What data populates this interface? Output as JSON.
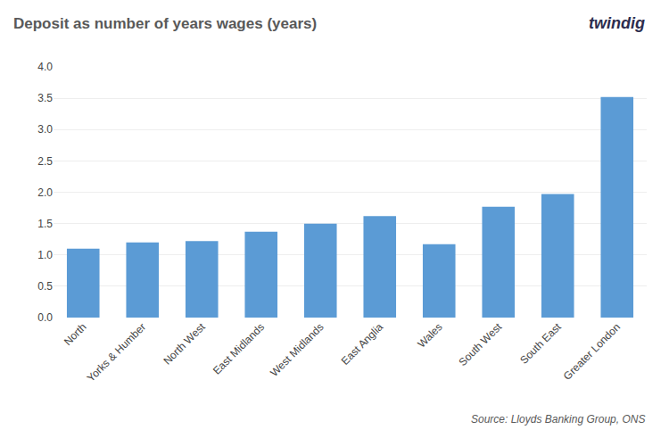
{
  "chart_data": {
    "type": "bar",
    "title": "Deposit as number of years wages (years)",
    "categories": [
      "North",
      "Yorks & Humber",
      "North West",
      "East Midlands",
      "West Midlands",
      "East Anglia",
      "Wales",
      "South West",
      "South East",
      "Greater London"
    ],
    "values": [
      1.1,
      1.2,
      1.22,
      1.37,
      1.5,
      1.62,
      1.17,
      1.77,
      1.97,
      3.52
    ],
    "color": "#5B9BD5",
    "ylim": [
      0,
      4.0
    ],
    "yticks": [
      {
        "value": 0.0,
        "label": "0.0"
      },
      0.5,
      {
        "value": 1.0,
        "label": "1.0"
      },
      1.5,
      {
        "value": 2.0,
        "label": "2.0"
      },
      2.5,
      {
        "value": 3.0,
        "label": "3.0"
      },
      3.5,
      {
        "value": 4.0,
        "label": "4.0"
      }
    ],
    "grid": true,
    "annotations": [
      "twindig",
      "Source: Lloyds Banking Group, ONS"
    ]
  }
}
